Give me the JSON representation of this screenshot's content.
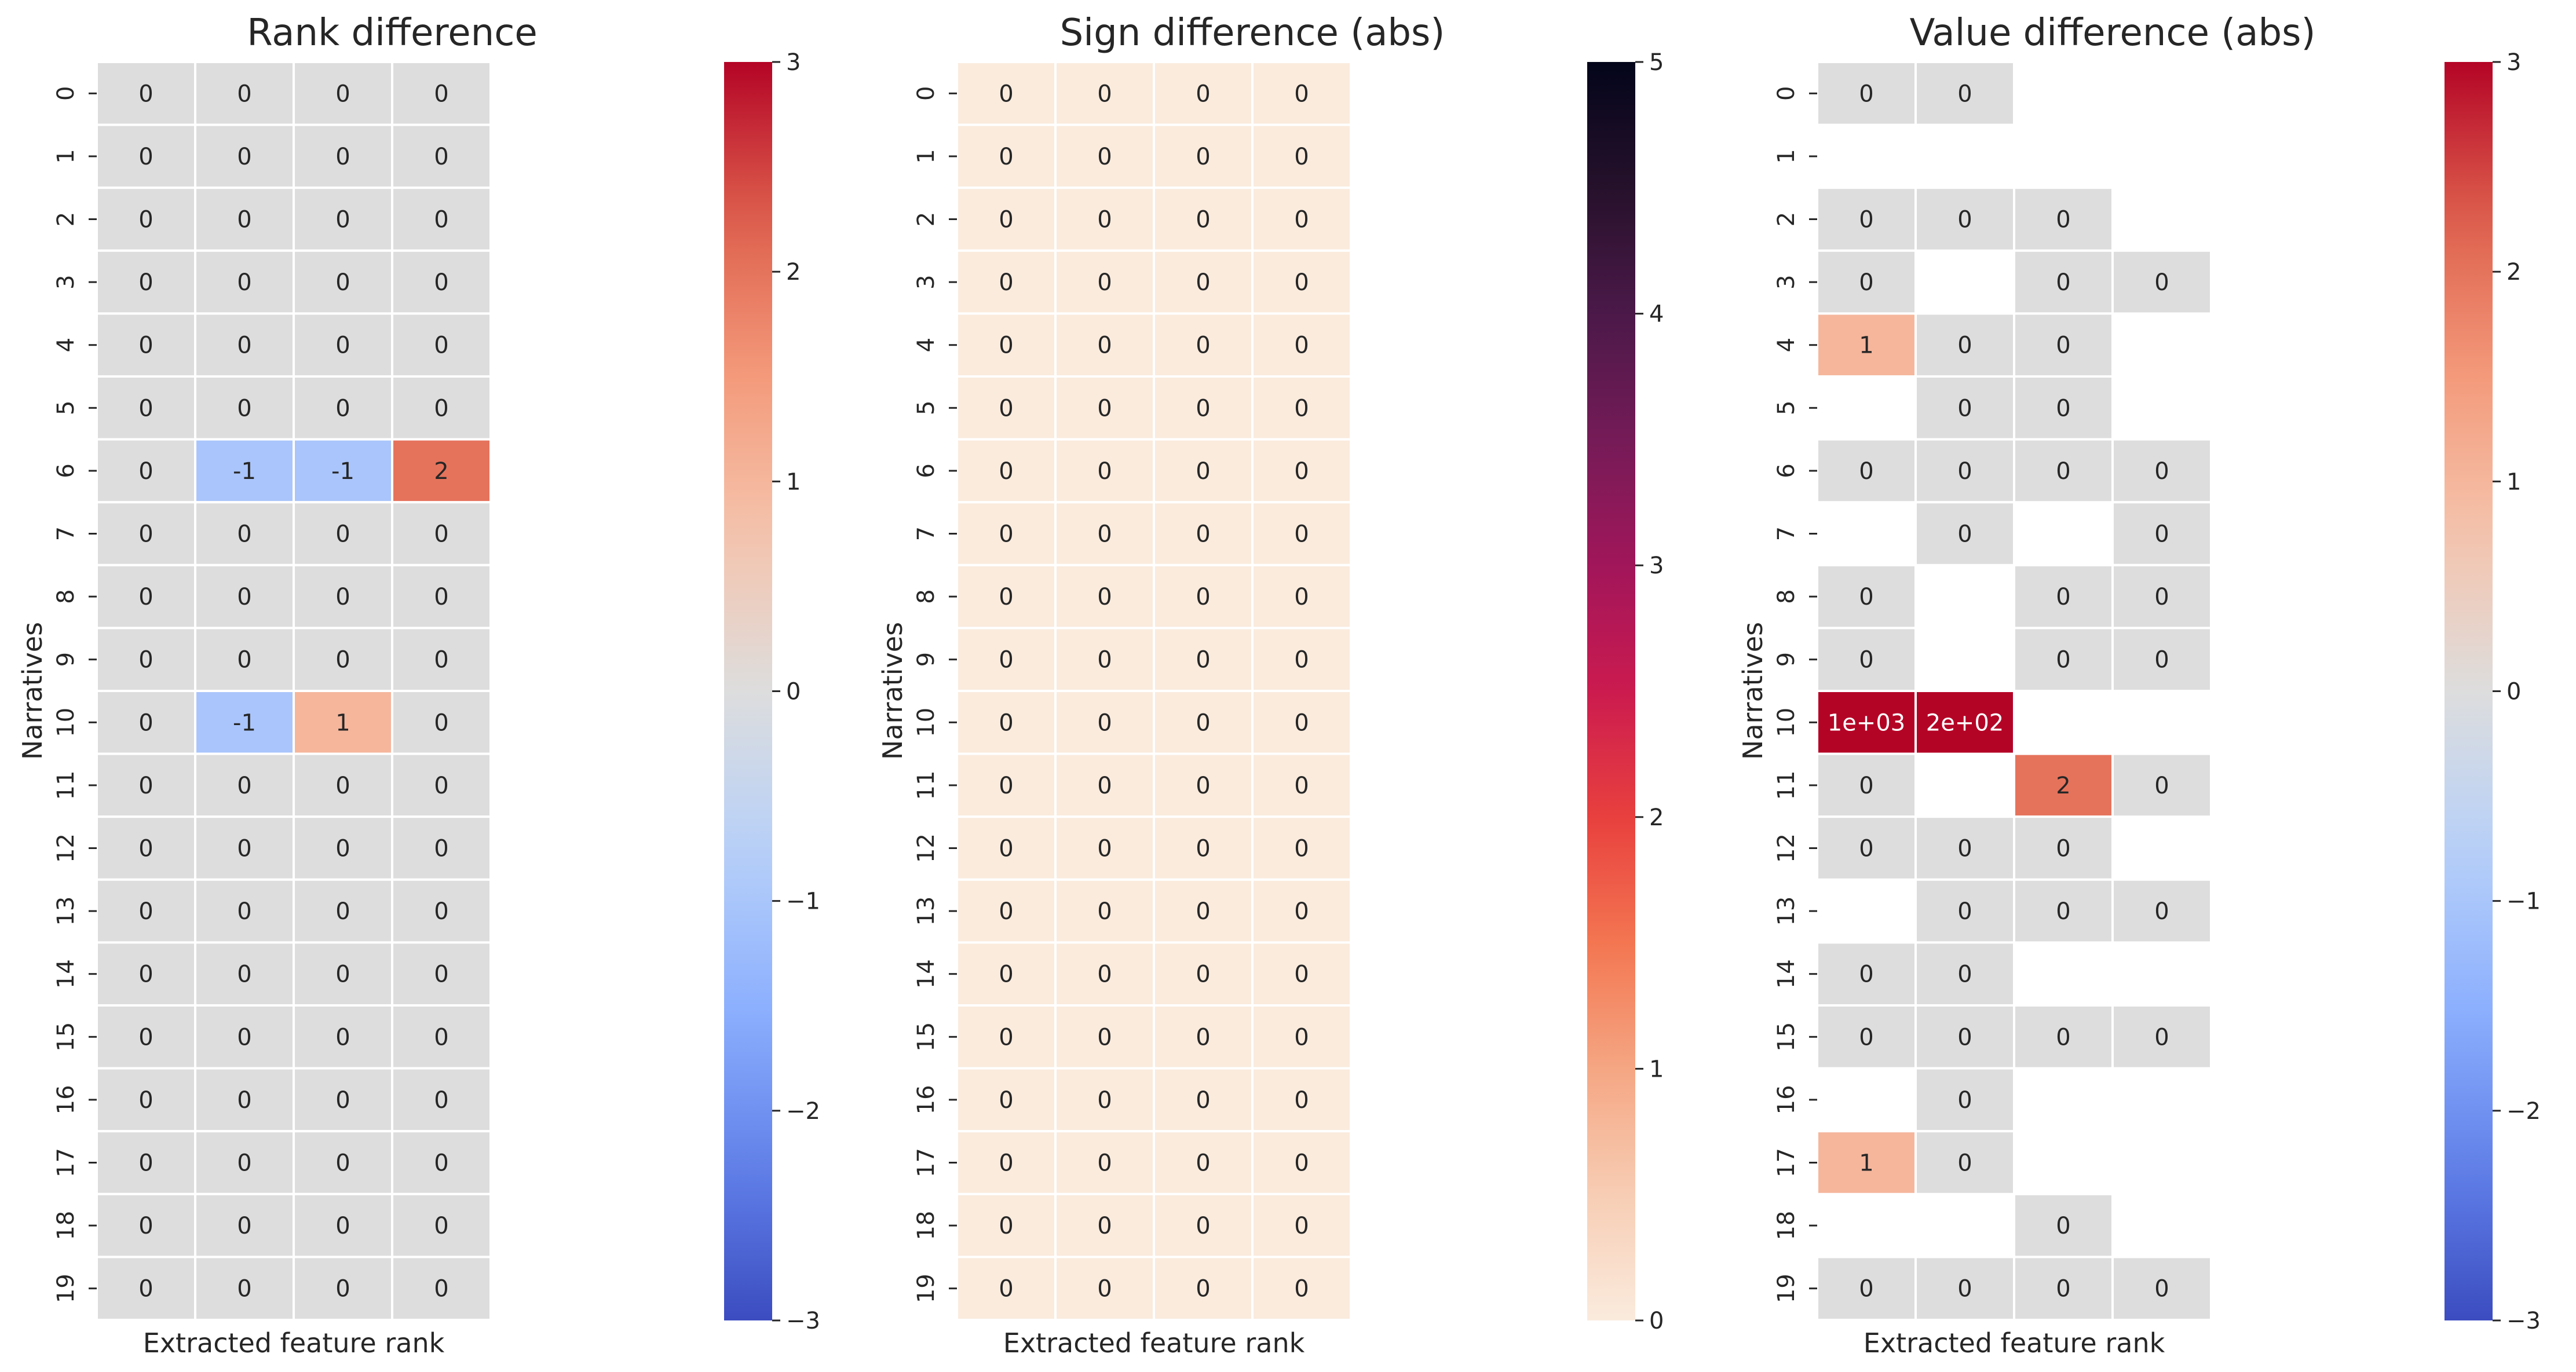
{
  "chart_data": [
    {
      "type": "heatmap",
      "title": "Rank difference",
      "xlabel": "Extracted feature rank",
      "ylabel": "Narratives",
      "rows": [
        "0",
        "1",
        "2",
        "3",
        "4",
        "5",
        "6",
        "7",
        "8",
        "9",
        "10",
        "11",
        "12",
        "13",
        "14",
        "15",
        "16",
        "17",
        "18",
        "19"
      ],
      "columns": 4,
      "values": [
        [
          0,
          0,
          0,
          0
        ],
        [
          0,
          0,
          0,
          0
        ],
        [
          0,
          0,
          0,
          0
        ],
        [
          0,
          0,
          0,
          0
        ],
        [
          0,
          0,
          0,
          0
        ],
        [
          0,
          0,
          0,
          0
        ],
        [
          0,
          -1,
          -1,
          2
        ],
        [
          0,
          0,
          0,
          0
        ],
        [
          0,
          0,
          0,
          0
        ],
        [
          0,
          0,
          0,
          0
        ],
        [
          0,
          -1,
          1,
          0
        ],
        [
          0,
          0,
          0,
          0
        ],
        [
          0,
          0,
          0,
          0
        ],
        [
          0,
          0,
          0,
          0
        ],
        [
          0,
          0,
          0,
          0
        ],
        [
          0,
          0,
          0,
          0
        ],
        [
          0,
          0,
          0,
          0
        ],
        [
          0,
          0,
          0,
          0
        ],
        [
          0,
          0,
          0,
          0
        ],
        [
          0,
          0,
          0,
          0
        ]
      ],
      "labels": [
        [
          "0",
          "0",
          "0",
          "0"
        ],
        [
          "0",
          "0",
          "0",
          "0"
        ],
        [
          "0",
          "0",
          "0",
          "0"
        ],
        [
          "0",
          "0",
          "0",
          "0"
        ],
        [
          "0",
          "0",
          "0",
          "0"
        ],
        [
          "0",
          "0",
          "0",
          "0"
        ],
        [
          "0",
          "-1",
          "-1",
          "2"
        ],
        [
          "0",
          "0",
          "0",
          "0"
        ],
        [
          "0",
          "0",
          "0",
          "0"
        ],
        [
          "0",
          "0",
          "0",
          "0"
        ],
        [
          "0",
          "-1",
          "1",
          "0"
        ],
        [
          "0",
          "0",
          "0",
          "0"
        ],
        [
          "0",
          "0",
          "0",
          "0"
        ],
        [
          "0",
          "0",
          "0",
          "0"
        ],
        [
          "0",
          "0",
          "0",
          "0"
        ],
        [
          "0",
          "0",
          "0",
          "0"
        ],
        [
          "0",
          "0",
          "0",
          "0"
        ],
        [
          "0",
          "0",
          "0",
          "0"
        ],
        [
          "0",
          "0",
          "0",
          "0"
        ],
        [
          "0",
          "0",
          "0",
          "0"
        ]
      ],
      "colormap": "coolwarm",
      "vmin": -3,
      "vmax": 3,
      "colorbar_ticks": [
        -3,
        -2,
        -1,
        0,
        1,
        2,
        3
      ],
      "colorbar_tick_labels": [
        "−3",
        "−2",
        "−1",
        "0",
        "1",
        "2",
        "3"
      ]
    },
    {
      "type": "heatmap",
      "title": "Sign difference (abs)",
      "xlabel": "Extracted feature rank",
      "ylabel": "Narratives",
      "rows": [
        "0",
        "1",
        "2",
        "3",
        "4",
        "5",
        "6",
        "7",
        "8",
        "9",
        "10",
        "11",
        "12",
        "13",
        "14",
        "15",
        "16",
        "17",
        "18",
        "19"
      ],
      "columns": 4,
      "values": [
        [
          0,
          0,
          0,
          0
        ],
        [
          0,
          0,
          0,
          0
        ],
        [
          0,
          0,
          0,
          0
        ],
        [
          0,
          0,
          0,
          0
        ],
        [
          0,
          0,
          0,
          0
        ],
        [
          0,
          0,
          0,
          0
        ],
        [
          0,
          0,
          0,
          0
        ],
        [
          0,
          0,
          0,
          0
        ],
        [
          0,
          0,
          0,
          0
        ],
        [
          0,
          0,
          0,
          0
        ],
        [
          0,
          0,
          0,
          0
        ],
        [
          0,
          0,
          0,
          0
        ],
        [
          0,
          0,
          0,
          0
        ],
        [
          0,
          0,
          0,
          0
        ],
        [
          0,
          0,
          0,
          0
        ],
        [
          0,
          0,
          0,
          0
        ],
        [
          0,
          0,
          0,
          0
        ],
        [
          0,
          0,
          0,
          0
        ],
        [
          0,
          0,
          0,
          0
        ],
        [
          0,
          0,
          0,
          0
        ]
      ],
      "labels": [
        [
          "0",
          "0",
          "0",
          "0"
        ],
        [
          "0",
          "0",
          "0",
          "0"
        ],
        [
          "0",
          "0",
          "0",
          "0"
        ],
        [
          "0",
          "0",
          "0",
          "0"
        ],
        [
          "0",
          "0",
          "0",
          "0"
        ],
        [
          "0",
          "0",
          "0",
          "0"
        ],
        [
          "0",
          "0",
          "0",
          "0"
        ],
        [
          "0",
          "0",
          "0",
          "0"
        ],
        [
          "0",
          "0",
          "0",
          "0"
        ],
        [
          "0",
          "0",
          "0",
          "0"
        ],
        [
          "0",
          "0",
          "0",
          "0"
        ],
        [
          "0",
          "0",
          "0",
          "0"
        ],
        [
          "0",
          "0",
          "0",
          "0"
        ],
        [
          "0",
          "0",
          "0",
          "0"
        ],
        [
          "0",
          "0",
          "0",
          "0"
        ],
        [
          "0",
          "0",
          "0",
          "0"
        ],
        [
          "0",
          "0",
          "0",
          "0"
        ],
        [
          "0",
          "0",
          "0",
          "0"
        ],
        [
          "0",
          "0",
          "0",
          "0"
        ],
        [
          "0",
          "0",
          "0",
          "0"
        ]
      ],
      "colormap": "rocket_r",
      "vmin": 0,
      "vmax": 5,
      "colorbar_ticks": [
        0,
        1,
        2,
        3,
        4,
        5
      ],
      "colorbar_tick_labels": [
        "0",
        "1",
        "2",
        "3",
        "4",
        "5"
      ]
    },
    {
      "type": "heatmap",
      "title": "Value difference (abs)",
      "xlabel": "Extracted feature rank",
      "ylabel": "Narratives",
      "rows": [
        "0",
        "1",
        "2",
        "3",
        "4",
        "5",
        "6",
        "7",
        "8",
        "9",
        "10",
        "11",
        "12",
        "13",
        "14",
        "15",
        "16",
        "17",
        "18",
        "19"
      ],
      "columns": 4,
      "values": [
        [
          0,
          0,
          null,
          null
        ],
        [
          null,
          null,
          null,
          null
        ],
        [
          0,
          0,
          0,
          null
        ],
        [
          0,
          null,
          0,
          0
        ],
        [
          1,
          0,
          0,
          null
        ],
        [
          null,
          0,
          0,
          null
        ],
        [
          0,
          0,
          0,
          0
        ],
        [
          null,
          0,
          null,
          0
        ],
        [
          0,
          null,
          0,
          0
        ],
        [
          0,
          null,
          0,
          0
        ],
        [
          1000,
          200,
          null,
          null
        ],
        [
          0,
          null,
          2,
          0
        ],
        [
          0,
          0,
          0,
          null
        ],
        [
          null,
          0,
          0,
          0
        ],
        [
          0,
          0,
          null,
          null
        ],
        [
          0,
          0,
          0,
          0
        ],
        [
          null,
          0,
          null,
          null
        ],
        [
          1,
          0,
          null,
          null
        ],
        [
          null,
          null,
          0,
          null
        ],
        [
          0,
          0,
          0,
          0
        ]
      ],
      "labels": [
        [
          "0",
          "0",
          "",
          ""
        ],
        [
          "",
          "",
          "",
          ""
        ],
        [
          "0",
          "0",
          "0",
          ""
        ],
        [
          "0",
          "",
          "0",
          "0"
        ],
        [
          "1",
          "0",
          "0",
          ""
        ],
        [
          "",
          "0",
          "0",
          ""
        ],
        [
          "0",
          "0",
          "0",
          "0"
        ],
        [
          "",
          "0",
          "",
          "0"
        ],
        [
          "0",
          "",
          "0",
          "0"
        ],
        [
          "0",
          "",
          "0",
          "0"
        ],
        [
          "1e+03",
          "2e+02",
          "",
          ""
        ],
        [
          "0",
          "",
          "2",
          "0"
        ],
        [
          "0",
          "0",
          "0",
          ""
        ],
        [
          "",
          "0",
          "0",
          "0"
        ],
        [
          "0",
          "0",
          "",
          ""
        ],
        [
          "0",
          "0",
          "0",
          "0"
        ],
        [
          "",
          "0",
          "",
          ""
        ],
        [
          "1",
          "0",
          "",
          ""
        ],
        [
          "",
          "",
          "0",
          ""
        ],
        [
          "0",
          "0",
          "0",
          "0"
        ]
      ],
      "colormap": "coolwarm",
      "vmin": -3,
      "vmax": 3,
      "colorbar_ticks": [
        -3,
        -2,
        -1,
        0,
        1,
        2,
        3
      ],
      "colorbar_tick_labels": [
        "−3",
        "−2",
        "−1",
        "0",
        "1",
        "2",
        "3"
      ]
    }
  ]
}
